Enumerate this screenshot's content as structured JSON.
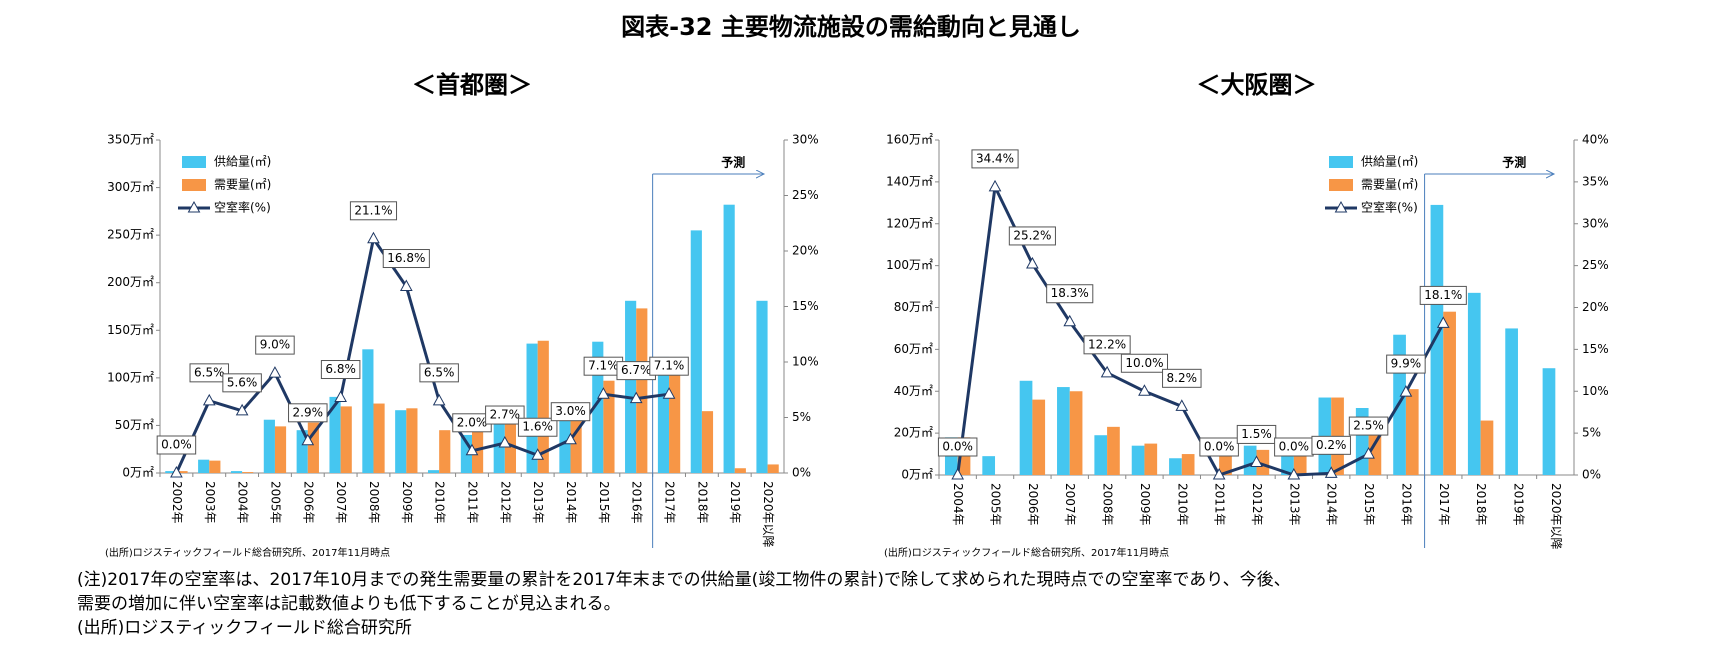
{
  "title": "図表-32 主要物流施設の需給動向と見通し",
  "notes": [
    "(注)2017年の空室率は、2017年10月までの発生需要量の累計を2017年末までの供給量(竣工物件の累計)で除して求められた現時点での空室率であり、今後、",
    "需要の増加に伴い空室率は記載数値よりも低下することが見込まれる。",
    "(出所)ロジスティックフィールド総合研究所"
  ],
  "chart_data": [
    {
      "type": "combo",
      "title": "＜首都圏＞",
      "source": "(出所)ロジスティックフィールド総合研究所、2017年11月時点",
      "categories": [
        "2002年",
        "2003年",
        "2004年",
        "2005年",
        "2006年",
        "2007年",
        "2008年",
        "2009年",
        "2010年",
        "2011年",
        "2012年",
        "2013年",
        "2014年",
        "2015年",
        "2016年",
        "2017年",
        "2018年",
        "2019年",
        "2020年以降"
      ],
      "series": [
        {
          "name": "供給量(㎡)",
          "kind": "bar",
          "color": "#45c6f0",
          "values": [
            2,
            14,
            2,
            56,
            45,
            80,
            130,
            66,
            3,
            40,
            60,
            136,
            72,
            138,
            181,
            122,
            255,
            282,
            181
          ]
        },
        {
          "name": "需要量(㎡)",
          "kind": "bar",
          "color": "#f79646",
          "values": [
            2,
            13,
            1,
            49,
            53,
            70,
            73,
            68,
            45,
            56,
            55,
            139,
            62,
            97,
            173,
            107,
            65,
            5,
            9
          ]
        },
        {
          "name": "空室率(%)",
          "kind": "line",
          "axis": "y2",
          "color": "#1f3864",
          "values": [
            0.0,
            6.5,
            5.6,
            9.0,
            2.9,
            6.8,
            21.1,
            16.8,
            6.5,
            2.0,
            2.7,
            1.6,
            3.0,
            7.1,
            6.7,
            7.1,
            null,
            null,
            null
          ],
          "value_labels": [
            "0.0%",
            "6.5%",
            "5.6%",
            "9.0%",
            "2.9%",
            "6.8%",
            "21.1%",
            "16.8%",
            "6.5%",
            "2.0%",
            "2.7%",
            "1.6%",
            "3.0%",
            "7.1%",
            "6.7%",
            "7.1%",
            null,
            null,
            null
          ]
        }
      ],
      "ylim": [
        0,
        350
      ],
      "yticks": [
        {
          "value": 0,
          "label": "0万㎡"
        },
        {
          "value": 50,
          "label": "50万㎡"
        },
        {
          "value": 100,
          "label": "100万㎡"
        },
        {
          "value": 150,
          "label": "150万㎡"
        },
        {
          "value": 200,
          "label": "200万㎡"
        },
        {
          "value": 250,
          "label": "250万㎡"
        },
        {
          "value": 300,
          "label": "300万㎡"
        },
        {
          "value": 350,
          "label": "350万㎡"
        }
      ],
      "y2lim": [
        0,
        30
      ],
      "y2ticks": [
        {
          "value": 0,
          "label": "0%"
        },
        {
          "value": 5,
          "label": "5%"
        },
        {
          "value": 10,
          "label": "10%"
        },
        {
          "value": 15,
          "label": "15%"
        },
        {
          "value": 20,
          "label": "20%"
        },
        {
          "value": 25,
          "label": "25%"
        },
        {
          "value": 30,
          "label": "30%"
        }
      ],
      "legend": "upper left",
      "forecast_label": "予測",
      "forecast_from": 15
    },
    {
      "type": "combo",
      "title": "＜大阪圏＞",
      "source": "(出所)ロジスティックフィールド総合研究所、2017年11月時点",
      "categories": [
        "2004年",
        "2005年",
        "2006年",
        "2007年",
        "2008年",
        "2009年",
        "2010年",
        "2011年",
        "2012年",
        "2013年",
        "2014年",
        "2015年",
        "2016年",
        "2017年",
        "2018年",
        "2019年",
        "2020年以降"
      ],
      "series": [
        {
          "name": "供給量(㎡)",
          "kind": "bar",
          "color": "#45c6f0",
          "values": [
            18,
            9,
            45,
            42,
            19,
            14,
            8,
            0,
            14,
            15,
            37,
            32,
            67,
            129,
            87,
            70,
            51
          ]
        },
        {
          "name": "需要量(㎡)",
          "kind": "bar",
          "color": "#f79646",
          "values": [
            18,
            null,
            36,
            40,
            23,
            15,
            10,
            12,
            12,
            17,
            37,
            26,
            41,
            78,
            26,
            null,
            null
          ]
        },
        {
          "name": "空室率(%)",
          "kind": "line",
          "axis": "y2",
          "color": "#1f3864",
          "values": [
            0.0,
            34.4,
            25.2,
            18.3,
            12.2,
            10.0,
            8.2,
            0.0,
            1.5,
            0.0,
            0.2,
            2.5,
            9.9,
            18.1,
            null,
            null,
            null
          ],
          "value_labels": [
            "0.0%",
            "34.4%",
            "25.2%",
            "18.3%",
            "12.2%",
            "10.0%",
            "8.2%",
            "0.0%",
            "1.5%",
            "0.0%",
            "0.2%",
            "2.5%",
            "9.9%",
            "18.1%",
            null,
            null,
            null
          ]
        }
      ],
      "ylim": [
        0,
        160
      ],
      "yticks": [
        {
          "value": 0,
          "label": "0万㎡"
        },
        {
          "value": 20,
          "label": "20万㎡"
        },
        {
          "value": 40,
          "label": "40万㎡"
        },
        {
          "value": 60,
          "label": "60万㎡"
        },
        {
          "value": 80,
          "label": "80万㎡"
        },
        {
          "value": 100,
          "label": "100万㎡"
        },
        {
          "value": 120,
          "label": "120万㎡"
        },
        {
          "value": 140,
          "label": "140万㎡"
        },
        {
          "value": 160,
          "label": "160万㎡"
        }
      ],
      "y2lim": [
        0,
        40
      ],
      "y2ticks": [
        {
          "value": 0,
          "label": "0%"
        },
        {
          "value": 5,
          "label": "5%"
        },
        {
          "value": 10,
          "label": "10%"
        },
        {
          "value": 15,
          "label": "15%"
        },
        {
          "value": 20,
          "label": "20%"
        },
        {
          "value": 25,
          "label": "25%"
        },
        {
          "value": 30,
          "label": "30%"
        },
        {
          "value": 35,
          "label": "35%"
        },
        {
          "value": 40,
          "label": "40%"
        }
      ],
      "legend": "upper right",
      "forecast_label": "予測",
      "forecast_from": 13
    }
  ]
}
